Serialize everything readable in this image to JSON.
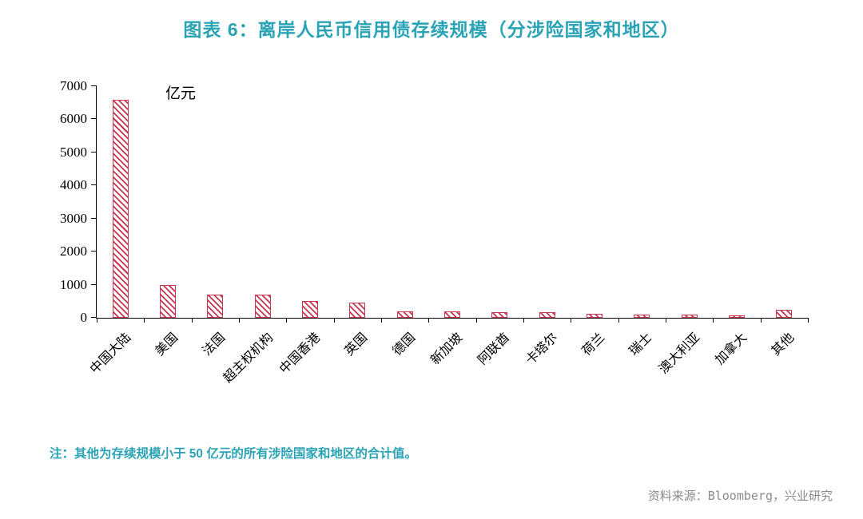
{
  "title": "图表 6：离岸人民币信用债存续规模（分涉险国家和地区）",
  "unit_label": "亿元",
  "note": "注：其他为存续规模小于 50 亿元的所有涉险国家和地区的合计值。",
  "source": "资料来源：Bloomberg，兴业研究",
  "colors": {
    "title": "#2AA3B5",
    "note": "#2AA3B5",
    "source": "#8A8A8A",
    "bar": "#C9344E",
    "axis": "#000000"
  },
  "chart_data": {
    "type": "bar",
    "title": "图表 6：离岸人民币信用债存续规模（分涉险国家和地区）",
    "unit": "亿元",
    "categories": [
      "中国大陆",
      "美国",
      "法国",
      "超主权机构",
      "中国香港",
      "英国",
      "德国",
      "新加坡",
      "阿联酋",
      "卡塔尔",
      "荷兰",
      "瑞士",
      "澳大利亚",
      "加拿大",
      "其他"
    ],
    "values": [
      6600,
      1000,
      700,
      700,
      500,
      450,
      200,
      190,
      180,
      170,
      110,
      90,
      90,
      80,
      230
    ],
    "ylim": [
      0,
      7000
    ],
    "yticks": [
      0,
      1000,
      2000,
      3000,
      4000,
      5000,
      6000,
      7000
    ],
    "grid": false,
    "legend": false,
    "bar_style": "diagonal-hatch",
    "xlabel": "",
    "ylabel": "亿元"
  }
}
